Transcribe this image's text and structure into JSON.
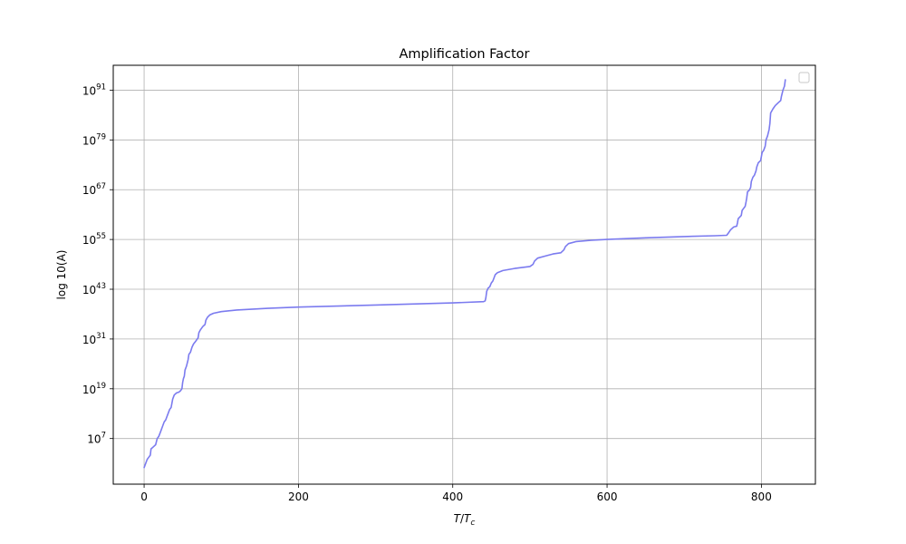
{
  "chart_data": {
    "type": "line",
    "title": "Amplification Factor",
    "xlabel_main": "T",
    "xlabel_sep": "/",
    "xlabel_den": "T",
    "xlabel_sub": "c",
    "ylabel": "log 10(A)",
    "xlim": [
      -40,
      870
    ],
    "ylim_exponent": [
      -4,
      97
    ],
    "x_ticks": [
      0,
      200,
      400,
      600,
      800
    ],
    "x_tick_labels": [
      "0",
      "200",
      "400",
      "600",
      "800"
    ],
    "y_ticks_exponent": [
      7,
      19,
      31,
      43,
      55,
      67,
      79,
      91
    ],
    "y_tick_base": "10",
    "y_tick_exponents": [
      "7",
      "19",
      "31",
      "43",
      "55",
      "67",
      "79",
      "91"
    ],
    "grid": true,
    "legend": "top-right",
    "series": [
      {
        "color": "#7b7bef",
        "points": [
          [
            0,
            0
          ],
          [
            2,
            1
          ],
          [
            4,
            2
          ],
          [
            6,
            2.5
          ],
          [
            8,
            3
          ],
          [
            9,
            4.5
          ],
          [
            12,
            5
          ],
          [
            15,
            5.5
          ],
          [
            17,
            7
          ],
          [
            19,
            7.5
          ],
          [
            21,
            8.5
          ],
          [
            24,
            10
          ],
          [
            26,
            11
          ],
          [
            28,
            11.5
          ],
          [
            31,
            13
          ],
          [
            33,
            14
          ],
          [
            35,
            14.5
          ],
          [
            37,
            16.5
          ],
          [
            39,
            17.5
          ],
          [
            42,
            18
          ],
          [
            45,
            18.2
          ],
          [
            47,
            18.5
          ],
          [
            49,
            19
          ],
          [
            50,
            20.5
          ],
          [
            51,
            21.5
          ],
          [
            52,
            22
          ],
          [
            53,
            23.5
          ],
          [
            55,
            24.5
          ],
          [
            57,
            26
          ],
          [
            58,
            27.3
          ],
          [
            60,
            27.8
          ],
          [
            62,
            29
          ],
          [
            64,
            29.8
          ],
          [
            67,
            30.5
          ],
          [
            70,
            31.3
          ],
          [
            71,
            32.5
          ],
          [
            73,
            33.2
          ],
          [
            76,
            34
          ],
          [
            79,
            34.5
          ],
          [
            80,
            35.5
          ],
          [
            82,
            36.2
          ],
          [
            85,
            36.8
          ],
          [
            90,
            37.2
          ],
          [
            100,
            37.6
          ],
          [
            120,
            38
          ],
          [
            160,
            38.4
          ],
          [
            200,
            38.7
          ],
          [
            300,
            39.2
          ],
          [
            400,
            39.7
          ],
          [
            440,
            40
          ],
          [
            442,
            40.2
          ],
          [
            443,
            41
          ],
          [
            444,
            42.5
          ],
          [
            446,
            43.3
          ],
          [
            448,
            43.6
          ],
          [
            450,
            44.5
          ],
          [
            452,
            45
          ],
          [
            455,
            46.5
          ],
          [
            458,
            47
          ],
          [
            465,
            47.5
          ],
          [
            480,
            48
          ],
          [
            500,
            48.5
          ],
          [
            504,
            49
          ],
          [
            506,
            49.8
          ],
          [
            510,
            50.5
          ],
          [
            520,
            51
          ],
          [
            530,
            51.5
          ],
          [
            540,
            51.8
          ],
          [
            544,
            52.5
          ],
          [
            546,
            53.3
          ],
          [
            550,
            54
          ],
          [
            560,
            54.5
          ],
          [
            580,
            54.8
          ],
          [
            600,
            55
          ],
          [
            650,
            55.4
          ],
          [
            700,
            55.7
          ],
          [
            740,
            55.9
          ],
          [
            755,
            56
          ],
          [
            757,
            56.5
          ],
          [
            760,
            57.3
          ],
          [
            764,
            58
          ],
          [
            768,
            58.2
          ],
          [
            769,
            59
          ],
          [
            770,
            60
          ],
          [
            772,
            60.4
          ],
          [
            774,
            60.8
          ],
          [
            775,
            62
          ],
          [
            777,
            62.5
          ],
          [
            779,
            63
          ],
          [
            780,
            64
          ],
          [
            781,
            65
          ],
          [
            782,
            66.5
          ],
          [
            784,
            66.8
          ],
          [
            786,
            67.5
          ],
          [
            787,
            69
          ],
          [
            789,
            70
          ],
          [
            791,
            70.5
          ],
          [
            793,
            71.5
          ],
          [
            794,
            72.5
          ],
          [
            796,
            73.5
          ],
          [
            799,
            74
          ],
          [
            800,
            75
          ],
          [
            801,
            76
          ],
          [
            803,
            76.5
          ],
          [
            805,
            77.5
          ],
          [
            806,
            79
          ],
          [
            808,
            80
          ],
          [
            810,
            81.5
          ],
          [
            811,
            83
          ],
          [
            812,
            85.5
          ],
          [
            815,
            86.5
          ],
          [
            818,
            87.3
          ],
          [
            822,
            88
          ],
          [
            825,
            88.5
          ],
          [
            826,
            89.5
          ],
          [
            828,
            91
          ],
          [
            830,
            92
          ],
          [
            831,
            93.5
          ]
        ]
      }
    ]
  }
}
